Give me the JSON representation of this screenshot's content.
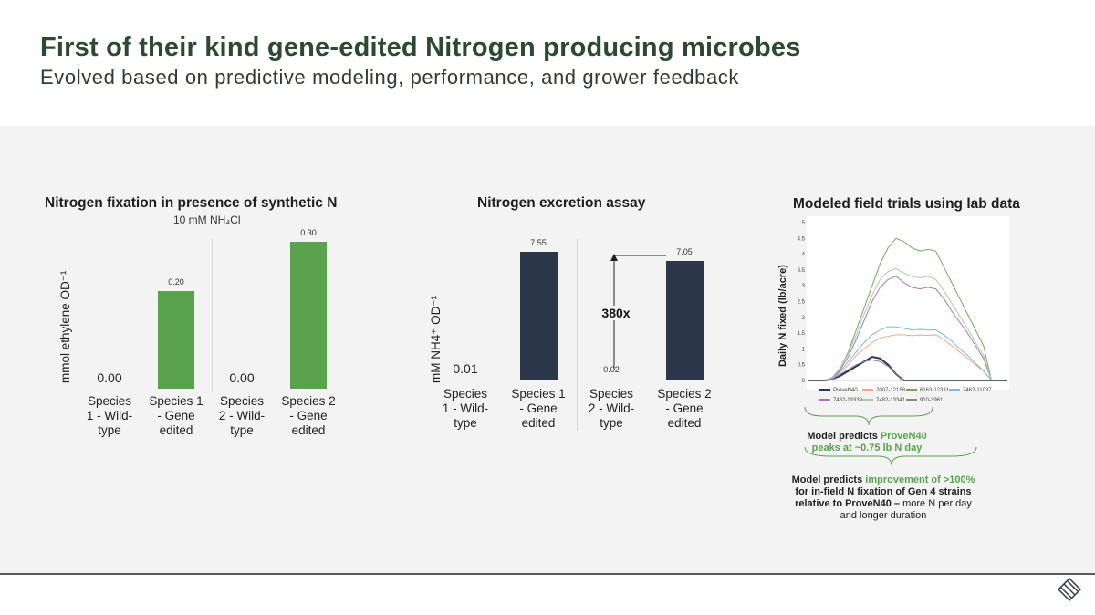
{
  "header": {
    "title": "First of their kind gene-edited Nitrogen producing microbes",
    "subtitle": "Evolved based on predictive modeling, performance, and grower feedback"
  },
  "colors": {
    "green": "#5ba24e",
    "navy": "#2b384a",
    "title_green": "#2b4a2f",
    "panel_bg": "#f3f3f3"
  },
  "chart_data": [
    {
      "type": "bar",
      "title": "Nitrogen fixation in presence of synthetic N",
      "subtitle": "10 mM NH₄Cl",
      "ylabel": "mmol ethylene OD⁻¹",
      "categories": [
        "Species 1 - Wild-type",
        "Species 1 - Gene edited",
        "Species 2 - Wild-type",
        "Species 2 - Gene edited"
      ],
      "category_lines": [
        [
          "Species",
          "1 - Wild-",
          "type"
        ],
        [
          "Species 1",
          "- Gene",
          "edited"
        ],
        [
          "Species",
          "2 - Wild-",
          "type"
        ],
        [
          "Species 2",
          "- Gene",
          "edited"
        ]
      ],
      "values": [
        0.0,
        0.2,
        0.0,
        0.3
      ],
      "value_labels": [
        "0.00",
        "0.20",
        "0.00",
        "0.30"
      ],
      "color": "#5ba24e",
      "ylim": [
        0,
        0.32
      ]
    },
    {
      "type": "bar",
      "title": "Nitrogen excretion assay",
      "ylabel": "mM NH4⁺ OD⁻¹",
      "categories": [
        "Species 1 - Wild-type",
        "Species 1 - Gene edited",
        "Species 2 - Wild-type",
        "Species 2 - Gene edited"
      ],
      "category_lines": [
        [
          "Species",
          "1 - Wild-",
          "type"
        ],
        [
          "Species 1",
          "- Gene",
          "edited"
        ],
        [
          "Species",
          "2 - Wild-",
          "type"
        ],
        [
          "Species 2",
          "- Gene",
          "edited"
        ]
      ],
      "values": [
        0.01,
        7.55,
        0.02,
        7.05
      ],
      "value_labels": [
        "0.01",
        "7.55",
        "0.02",
        "7.05"
      ],
      "color": "#2b384a",
      "annotation": "380x",
      "ylim": [
        0,
        7.9
      ]
    },
    {
      "type": "line",
      "title": "Modeled field trials using lab data",
      "ylabel": "Daily N fixed (lb/acre)",
      "ylim": [
        0,
        5
      ],
      "yticks": [
        "0",
        "0.5",
        "1",
        "1.5",
        "2",
        "2.5",
        "3",
        "3.5",
        "4",
        "4.5",
        "5"
      ],
      "x": [
        0,
        2,
        4,
        6,
        8,
        10,
        12,
        14,
        16,
        18,
        20,
        22,
        24,
        26,
        28,
        30,
        32,
        34,
        36,
        38,
        40,
        42,
        44,
        46,
        48,
        50
      ],
      "series": [
        {
          "name": "ProveN40",
          "color": "#1f3864",
          "width": 2,
          "values": [
            0,
            0,
            0,
            0.05,
            0.15,
            0.3,
            0.45,
            0.6,
            0.75,
            0.7,
            0.5,
            0.2,
            0,
            0,
            0,
            0,
            0,
            0,
            0,
            0,
            0,
            0,
            0,
            0,
            0,
            0
          ]
        },
        {
          "name": "2007-12158",
          "color": "#f4a582",
          "width": 1,
          "values": [
            0,
            0,
            0,
            0.05,
            0.25,
            0.5,
            0.8,
            1.0,
            1.2,
            1.35,
            1.4,
            1.45,
            1.45,
            1.42,
            1.44,
            1.43,
            1.45,
            1.3,
            1.1,
            0.9,
            0.7,
            0.5,
            0.3,
            0,
            0,
            0
          ]
        },
        {
          "name": "6163-12331",
          "color": "#6cab5f",
          "width": 1,
          "values": [
            0,
            0,
            0,
            0.1,
            0.4,
            0.9,
            1.6,
            2.3,
            3.0,
            3.7,
            4.2,
            4.5,
            4.4,
            4.2,
            4.1,
            4.15,
            4.1,
            3.6,
            3.1,
            2.6,
            2.1,
            1.6,
            1.1,
            0,
            0,
            0
          ]
        },
        {
          "name": "7462-11037",
          "color": "#7fb8e0",
          "width": 1,
          "values": [
            0,
            0,
            0,
            0.05,
            0.3,
            0.6,
            0.9,
            1.2,
            1.45,
            1.6,
            1.7,
            1.7,
            1.65,
            1.6,
            1.62,
            1.6,
            1.6,
            1.45,
            1.25,
            1.0,
            0.8,
            0.55,
            0.3,
            0,
            0,
            0
          ]
        },
        {
          "name": "7482-13339",
          "color": "#b06fc4",
          "width": 1,
          "values": [
            0,
            0,
            0,
            0.08,
            0.35,
            0.75,
            1.3,
            1.9,
            2.5,
            2.95,
            3.2,
            3.3,
            3.1,
            2.95,
            2.9,
            2.95,
            2.9,
            2.6,
            2.2,
            1.85,
            1.5,
            1.1,
            0.7,
            0,
            0,
            0
          ]
        },
        {
          "name": "7482-13341",
          "color": "#a9cf9b",
          "width": 1,
          "values": [
            0,
            0,
            0,
            0.1,
            0.4,
            0.85,
            1.45,
            2.1,
            2.7,
            3.2,
            3.45,
            3.55,
            3.4,
            3.3,
            3.25,
            3.3,
            3.2,
            2.85,
            2.45,
            2.05,
            1.65,
            1.2,
            0.8,
            0,
            0,
            0
          ]
        },
        {
          "name": "910-3961",
          "color": "#8a8a8a",
          "width": 1,
          "values": [
            0,
            0,
            0,
            0.05,
            0.2,
            0.35,
            0.5,
            0.6,
            0.65,
            0.6,
            0.45,
            0.2,
            0,
            0,
            0,
            0,
            0,
            0,
            0,
            0,
            0,
            0,
            0,
            0,
            0,
            0
          ]
        }
      ],
      "notes": {
        "note1_prefix": "Model predicts ",
        "note1_highlight": "ProveN40",
        "note1_line2": "peaks at ~0.75 lb N day",
        "note2_prefix": "Model predicts ",
        "note2_highlight": "improvement of >100%",
        "note2_line2": "for in-field N fixation of Gen 4 strains",
        "note2_line3_bold": "relative to ProveN40 –",
        "note2_line3_rest": " more N per day",
        "note2_line4": "and longer duration"
      }
    }
  ]
}
